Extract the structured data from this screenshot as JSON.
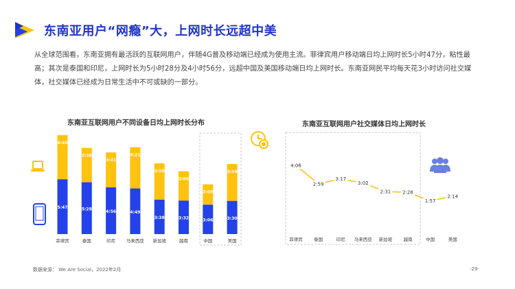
{
  "header": {
    "title": "东南亚用户“网瘾”大，上网时长远超中美"
  },
  "body_text": "从全球范围看，东南亚拥有最活跃的互联网用户，伴随4G普及移动端已经成为使用主流。菲律宾用户移动端日均上网时长5小时47分，粘性最高；其次是泰国和印尼，上网时长为5小时28分及4小时56分，远超中国及美国移动端日均上网时长。东南亚网民平均每天花3小时访问社交媒体，社交媒体已经成为日常生活中不可或缺的一部分。",
  "chart_data": [
    {
      "type": "bar",
      "title": "东南亚互联网用户不同设备日均上网时长分布",
      "categories": [
        "菲律宾",
        "泰国",
        "印尼",
        "马来西亚",
        "新加坡",
        "越南",
        "中国",
        "美国"
      ],
      "series": [
        {
          "device": "mobile",
          "values_minutes": [
            347,
            328,
            296,
            289,
            218,
            212,
            186,
            210
          ],
          "labels": [
            "5:47",
            "5:28",
            "4:56",
            "4:49",
            "3:38",
            "3:32",
            "3:06",
            "3:30"
          ]
        },
        {
          "device": "computer",
          "values_minutes": [
            280,
            218,
            221,
            261,
            230,
            186,
            129,
            234
          ],
          "labels": [
            "4:40",
            "3:38",
            "3:41",
            "4:21",
            "3:50",
            "3:06",
            "2:09",
            "3:54"
          ]
        }
      ],
      "stacked": true,
      "colors": {
        "mobile": "#2442e8",
        "computer": "#ffc20e"
      }
    },
    {
      "type": "line",
      "title": "东南亚互联网用户社交媒体日均上网时长",
      "categories": [
        "菲律宾",
        "泰国",
        "印尼",
        "马来西亚",
        "新加坡",
        "越南",
        "中国",
        "美国"
      ],
      "values_minutes": [
        246,
        179,
        197,
        182,
        151,
        148,
        117,
        134
      ],
      "labels": [
        "4:06",
        "2:59",
        "3:17",
        "3:02",
        "2:31",
        "2:28",
        "1:57",
        "2:14"
      ],
      "color": "#ffc20e"
    }
  ],
  "icons": {
    "clock": "clock-icon",
    "laptop": "laptop-icon",
    "phone": "phone-icon",
    "people": "people-icon"
  },
  "footer": {
    "source": "数据来源： We Are Social，2022年2月",
    "page": "-29-"
  }
}
